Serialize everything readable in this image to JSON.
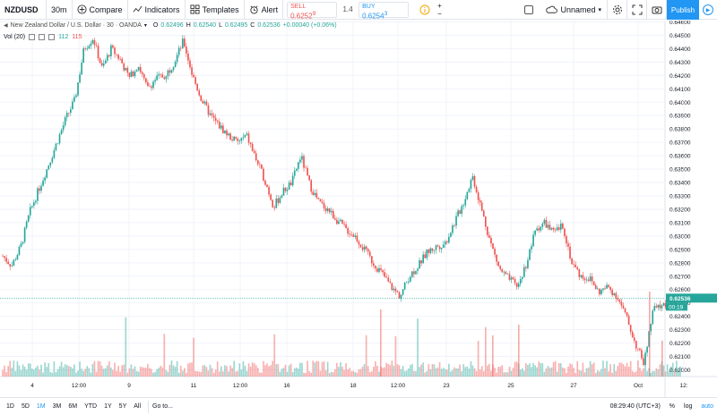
{
  "toolbar": {
    "symbol": "NZDUSD",
    "interval": "30m",
    "compare": "Compare",
    "indicators": "Indicators",
    "templates": "Templates",
    "alert": "Alert",
    "sell_label": "SELL",
    "sell_value": "0.6252",
    "sell_sup": "9",
    "spread": "1.4",
    "buy_label": "BUY",
    "buy_value": "0.6254",
    "buy_sup": "3",
    "unnamed": "Unnamed",
    "publish": "Publish"
  },
  "legend": {
    "title": "New Zealand Dollar / U.S. Dollar · 30 · OANDA",
    "o_label": "O",
    "o": "0.62496",
    "h_label": "H",
    "h": "0.62540",
    "l_label": "L",
    "l": "0.62495",
    "c_label": "C",
    "c": "0.62536",
    "change": "+0.00040 (+0.06%)",
    "vol_label": "Vol (20)",
    "vol_a": "112",
    "vol_b": "115"
  },
  "price_axis": {
    "labels": [
      "0.64600",
      "0.64500",
      "0.64400",
      "0.64300",
      "0.64200",
      "0.64100",
      "0.64000",
      "0.63900",
      "0.63800",
      "0.63700",
      "0.63600",
      "0.63500",
      "0.63400",
      "0.63300",
      "0.63200",
      "0.63100",
      "0.63000",
      "0.62900",
      "0.62800",
      "0.62700",
      "0.62600",
      "0.62500",
      "0.62400",
      "0.62300",
      "0.62200",
      "0.62100",
      "0.62000"
    ],
    "current_price": "0.62536",
    "countdown": "00:19"
  },
  "time_axis": {
    "labels": [
      "4",
      "12:00",
      "9",
      "11",
      "12:00",
      "16",
      "18",
      "12:00",
      "23",
      "25",
      "27",
      "Oct",
      "12:"
    ]
  },
  "chart_data": {
    "type": "candlestick",
    "symbol": "NZDUSD",
    "interval": "30",
    "ylim": [
      0.6195,
      0.6461
    ],
    "grid": true,
    "close_path": [
      0.6285,
      0.6278,
      0.6292,
      0.6318,
      0.6335,
      0.6352,
      0.637,
      0.6388,
      0.6402,
      0.644,
      0.6448,
      0.6425,
      0.644,
      0.6432,
      0.6418,
      0.6428,
      0.641,
      0.6418,
      0.642,
      0.643,
      0.6446,
      0.642,
      0.6402,
      0.639,
      0.6382,
      0.6375,
      0.637,
      0.6375,
      0.6358,
      0.6342,
      0.6322,
      0.6333,
      0.634,
      0.636,
      0.6338,
      0.6325,
      0.632,
      0.6312,
      0.6305,
      0.63,
      0.629,
      0.628,
      0.6272,
      0.6262,
      0.6255,
      0.627,
      0.6278,
      0.6288,
      0.6292,
      0.6295,
      0.631,
      0.6325,
      0.6345,
      0.632,
      0.6295,
      0.6275,
      0.6268,
      0.6262,
      0.628,
      0.6305,
      0.631,
      0.6302,
      0.6308,
      0.628,
      0.627,
      0.6268,
      0.6258,
      0.6262,
      0.6255,
      0.624,
      0.622,
      0.6205,
      0.6245,
      0.6248,
      0.625,
      0.6253
    ]
  },
  "bottom_bar": {
    "timeframes": [
      "1D",
      "5D",
      "1M",
      "3M",
      "6M",
      "YTD",
      "1Y",
      "5Y",
      "All"
    ],
    "active": "1M",
    "goto": "Go to...",
    "clock": "08:29:40 (UTC+3)",
    "percent": "%",
    "log": "log",
    "auto": "auto"
  }
}
